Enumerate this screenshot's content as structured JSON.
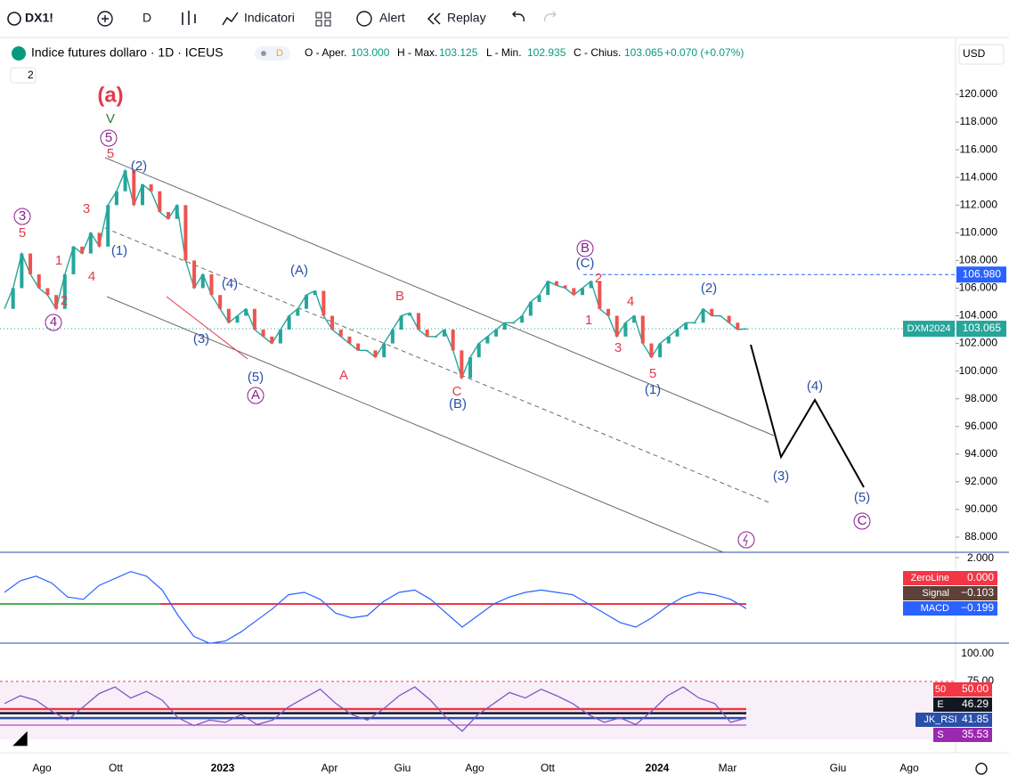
{
  "toolbar": {
    "symbol": "DX1!",
    "interval": "D",
    "indicators": "Indicatori",
    "alert": "Alert",
    "replay": "Replay"
  },
  "legend": {
    "title": "Indice futures dollaro · 1D · ICEUS",
    "badge": "D",
    "collapse": "2",
    "open_label": "O - Aper.",
    "open": "103.000",
    "high_label": "H - Max.",
    "high": "103.125",
    "low_label": "L - Min.",
    "low": "102.935",
    "close_label": "C - Chius.",
    "close": "103.065",
    "change": "+0.070 (+0.07%)"
  },
  "price_axis": {
    "currency": "USD",
    "ticks": [
      {
        "value": 88,
        "label": "88.000"
      },
      {
        "value": 90,
        "label": "90.000"
      },
      {
        "value": 92,
        "label": "92.000"
      },
      {
        "value": 94,
        "label": "94.000"
      },
      {
        "value": 96,
        "label": "96.000"
      },
      {
        "value": 98,
        "label": "98.000"
      },
      {
        "value": 100,
        "label": "100.000"
      },
      {
        "value": 102,
        "label": "102.000"
      },
      {
        "value": 104,
        "label": "104.000"
      },
      {
        "value": 106,
        "label": "106.000"
      },
      {
        "value": 108,
        "label": "108.000"
      },
      {
        "value": 110,
        "label": "110.000"
      },
      {
        "value": 112,
        "label": "112.000"
      },
      {
        "value": 114,
        "label": "114.000"
      },
      {
        "value": 116,
        "label": "116.000"
      },
      {
        "value": 118,
        "label": "118.000"
      },
      {
        "value": 120,
        "label": "120.000"
      }
    ]
  },
  "price_badges": [
    {
      "value": 106.98,
      "label": "106.980",
      "color": "#2962ff"
    },
    {
      "name": "DXM2024",
      "value": 103.065,
      "label": "103.065",
      "color": "#26a69a"
    }
  ],
  "prices": [
    104.5,
    106,
    108.5,
    107,
    106,
    105.5,
    104.5,
    107,
    109,
    108.5,
    110,
    109,
    112,
    113,
    114.5,
    112,
    113.5,
    113,
    111.5,
    111,
    112,
    108,
    106,
    107,
    105.5,
    104.5,
    103.5,
    104,
    104.5,
    103,
    102.5,
    102,
    103,
    104,
    104.5,
    105.5,
    105.8,
    104,
    103,
    102.5,
    102,
    101.5,
    101.5,
    101,
    102,
    103,
    104,
    104.2,
    103,
    102.5,
    102.5,
    103,
    101.5,
    99.5,
    101,
    102,
    102.5,
    103,
    103.5,
    103.5,
    104,
    105,
    105.5,
    106.5,
    106.2,
    106,
    105.5,
    106,
    106.5,
    104.5,
    104,
    102.5,
    103.5,
    104,
    102,
    101,
    102,
    102.5,
    103,
    103.5,
    103.5,
    104.5,
    104,
    104,
    103.5,
    103,
    103.065
  ],
  "waves": [
    {
      "text": "(a)",
      "color": "#e03b4e"
    },
    {
      "text": "V",
      "color": "#2e7d32"
    },
    {
      "text": "5",
      "color": "#8b1c8b"
    },
    {
      "text": "5",
      "color": "#e03b4e"
    },
    {
      "text": "(2)",
      "color": "#2a4fa8"
    },
    {
      "text": "3",
      "color": "#8b1c8b"
    },
    {
      "text": "5",
      "color": "#e03b4e"
    },
    {
      "text": "3",
      "color": "#e03b4e"
    },
    {
      "text": "1",
      "color": "#e03b4e"
    },
    {
      "text": "4",
      "color": "#e03b4e"
    },
    {
      "text": "2",
      "color": "#e03b4e"
    },
    {
      "text": "4",
      "color": "#8b1c8b"
    },
    {
      "text": "(1)",
      "color": "#2a4fa8"
    },
    {
      "text": "(4)",
      "color": "#2a4fa8"
    },
    {
      "text": "(3)",
      "color": "#2a4fa8"
    },
    {
      "text": "(5)",
      "color": "#2a4fa8"
    },
    {
      "text": "A",
      "color": "#8b1c8b"
    },
    {
      "text": "(A)",
      "color": "#2a4fa8"
    },
    {
      "text": "B",
      "color": "#e03b4e"
    },
    {
      "text": "A",
      "color": "#e03b4e"
    },
    {
      "text": "C",
      "color": "#e03b4e"
    },
    {
      "text": "(B)",
      "color": "#2a4fa8"
    },
    {
      "text": "B",
      "color": "#8b1c8b"
    },
    {
      "text": "(C)",
      "color": "#2a4fa8"
    },
    {
      "text": "2",
      "color": "#e03b4e"
    },
    {
      "text": "1",
      "color": "#e03b4e"
    },
    {
      "text": "4",
      "color": "#e03b4e"
    },
    {
      "text": "3",
      "color": "#e03b4e"
    },
    {
      "text": "5",
      "color": "#e03b4e"
    },
    {
      "text": "(1)",
      "color": "#2a4fa8"
    },
    {
      "text": "(2)",
      "color": "#2a4fa8"
    },
    {
      "text": "(4)",
      "color": "#2a4fa8"
    },
    {
      "text": "(3)",
      "color": "#2a4fa8"
    },
    {
      "text": "(5)",
      "color": "#2a4fa8"
    },
    {
      "text": "C",
      "color": "#8b1c8b"
    }
  ],
  "time_axis": [
    "Ago",
    "Ott",
    "2023",
    "Apr",
    "Giu",
    "Ago",
    "Ott",
    "2024",
    "Mar",
    "Giu",
    "Ago"
  ],
  "macd": {
    "ticks": [
      {
        "value": 2,
        "label": "2.000"
      }
    ],
    "zero": {
      "name": "ZeroLine",
      "value": 0,
      "label": "0.000"
    },
    "signal": {
      "name": "Signal",
      "value": -0.103,
      "label": "−0.103"
    },
    "macd": {
      "name": "MACD",
      "value": -0.199,
      "label": "−0.199"
    },
    "values": [
      0.5,
      1.0,
      1.2,
      0.9,
      0.3,
      0.2,
      0.8,
      1.1,
      1.4,
      1.2,
      0.6,
      -0.5,
      -1.4,
      -1.7,
      -1.6,
      -1.2,
      -0.7,
      -0.2,
      0.4,
      0.5,
      0.2,
      -0.4,
      -0.6,
      -0.5,
      0.1,
      0.5,
      0.6,
      0.2,
      -0.4,
      -1.0,
      -0.5,
      0.0,
      0.3,
      0.5,
      0.6,
      0.5,
      0.4,
      0.0,
      -0.4,
      -0.8,
      -1.0,
      -0.6,
      -0.1,
      0.3,
      0.5,
      0.4,
      0.2,
      -0.199
    ]
  },
  "rsi": {
    "ticks": [
      {
        "value": 100,
        "label": "100.00"
      },
      {
        "value": 75,
        "label": "75.00"
      }
    ],
    "levels": [
      {
        "name": "50",
        "value": 50,
        "label": "50.00",
        "color": "#f23645"
      },
      {
        "name": "E",
        "value": 46.29,
        "label": "46.29",
        "color": "#131722"
      },
      {
        "name": "JK_RSI",
        "value": 41.85,
        "label": "41.85",
        "color": "#2a4fa8"
      },
      {
        "name": "S",
        "value": 35.53,
        "label": "35.53",
        "color": "#9c27b0"
      }
    ],
    "values": [
      55,
      62,
      58,
      48,
      40,
      52,
      64,
      70,
      60,
      66,
      58,
      42,
      35,
      40,
      38,
      45,
      36,
      40,
      52,
      60,
      68,
      55,
      45,
      40,
      50,
      62,
      70,
      58,
      42,
      30,
      45,
      55,
      65,
      60,
      68,
      62,
      55,
      45,
      38,
      42,
      36,
      48,
      62,
      70,
      60,
      55,
      38,
      41.85
    ]
  }
}
